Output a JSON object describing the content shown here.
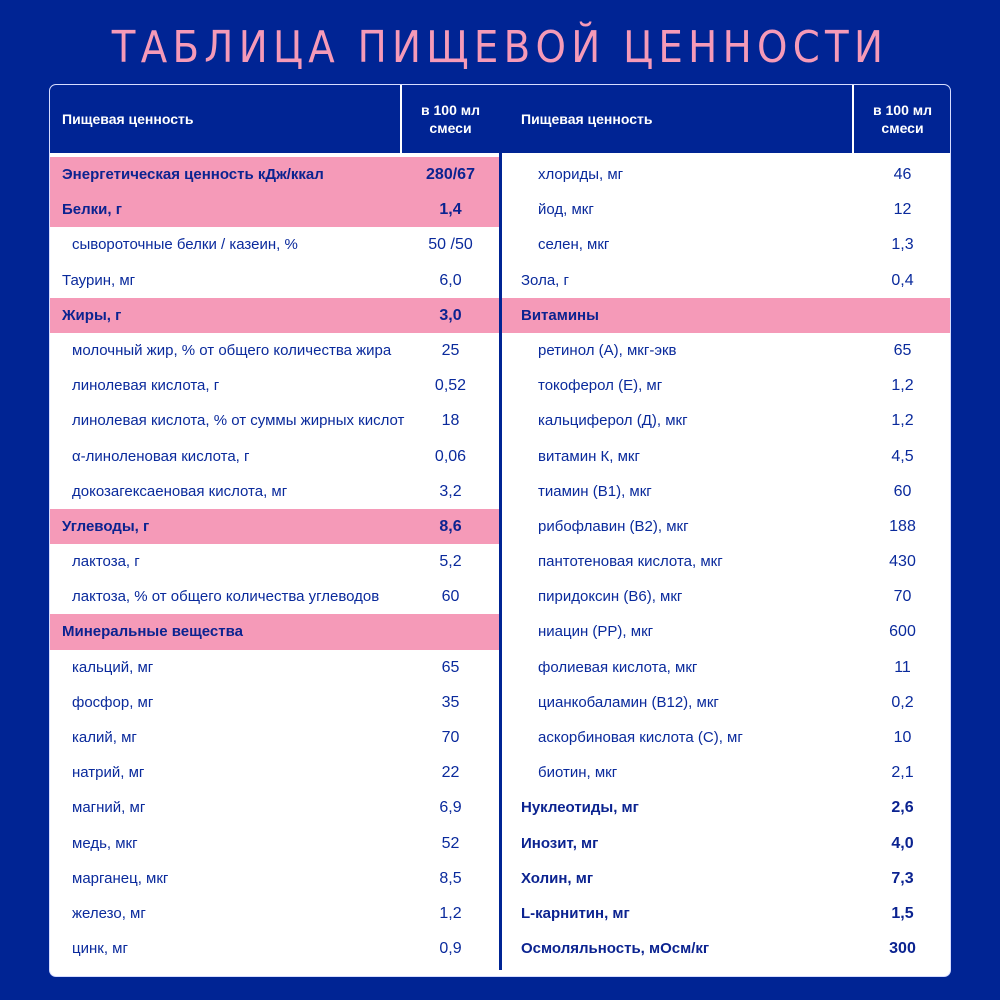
{
  "title": "ТАБЛИЦА ПИЩЕВОЙ ЦЕННОСТИ",
  "colors": {
    "background": "#002494",
    "accent_pink": "#f59ab8",
    "text_blue": "#0a2a9c",
    "card": "#ffffff"
  },
  "left": {
    "header": {
      "name": "Пищевая ценность",
      "unit_line1": "в 100 мл",
      "unit_line2": "смеси"
    },
    "rows": [
      {
        "label": "Энергетическая ценность кДж/ккал",
        "value": "280/67",
        "type": "section"
      },
      {
        "label": "Белки, г",
        "value": "1,4",
        "type": "section"
      },
      {
        "label": "сывороточные белки / казеин, %",
        "value": "50 /50",
        "type": "indent"
      },
      {
        "label": "Таурин, мг",
        "value": "6,0",
        "type": "plain"
      },
      {
        "label": "Жиры, г",
        "value": "3,0",
        "type": "section"
      },
      {
        "label": "молочный жир, % от общего количества жира",
        "value": "25",
        "type": "indent"
      },
      {
        "label": "линолевая кислота, г",
        "value": "0,52",
        "type": "indent"
      },
      {
        "label": "линолевая кислота, % от суммы жирных кислот",
        "value": "18",
        "type": "indent"
      },
      {
        "label": "α-линоленовая кислота, г",
        "value": "0,06",
        "type": "indent"
      },
      {
        "label": "докозагексаеновая кислота, мг",
        "value": "3,2",
        "type": "indent"
      },
      {
        "label": "Углеводы, г",
        "value": "8,6",
        "type": "section"
      },
      {
        "label": "лактоза, г",
        "value": "5,2",
        "type": "indent"
      },
      {
        "label": "лактоза, % от общего количества углеводов",
        "value": "60",
        "type": "indent"
      },
      {
        "label": "Минеральные вещества",
        "value": "",
        "type": "section"
      },
      {
        "label": "кальций, мг",
        "value": "65",
        "type": "indent"
      },
      {
        "label": "фосфор, мг",
        "value": "35",
        "type": "indent"
      },
      {
        "label": "калий, мг",
        "value": "70",
        "type": "indent"
      },
      {
        "label": "натрий, мг",
        "value": "22",
        "type": "indent"
      },
      {
        "label": "магний, мг",
        "value": "6,9",
        "type": "indent"
      },
      {
        "label": "медь, мкг",
        "value": "52",
        "type": "indent"
      },
      {
        "label": "марганец, мкг",
        "value": "8,5",
        "type": "indent"
      },
      {
        "label": "железо, мг",
        "value": "1,2",
        "type": "indent"
      },
      {
        "label": "цинк, мг",
        "value": "0,9",
        "type": "indent"
      }
    ]
  },
  "right": {
    "header": {
      "name": "Пищевая ценность",
      "unit_line1": "в 100 мл",
      "unit_line2": "смеси"
    },
    "rows": [
      {
        "label": "хлориды, мг",
        "value": "46",
        "type": "indent"
      },
      {
        "label": "йод, мкг",
        "value": "12",
        "type": "indent"
      },
      {
        "label": "селен, мкг",
        "value": "1,3",
        "type": "indent"
      },
      {
        "label": "Зола, г",
        "value": "0,4",
        "type": "plain"
      },
      {
        "label": "Витамины",
        "value": "",
        "type": "section"
      },
      {
        "label": "ретинол (А), мкг-экв",
        "value": "65",
        "type": "indent"
      },
      {
        "label": "токоферол (Е), мг",
        "value": "1,2",
        "type": "indent"
      },
      {
        "label": "кальциферол (Д), мкг",
        "value": "1,2",
        "type": "indent"
      },
      {
        "label": "витамин К, мкг",
        "value": "4,5",
        "type": "indent"
      },
      {
        "label": "тиамин (В1), мкг",
        "value": "60",
        "type": "indent"
      },
      {
        "label": "рибофлавин (В2), мкг",
        "value": "188",
        "type": "indent"
      },
      {
        "label": "пантотеновая кислота, мкг",
        "value": "430",
        "type": "indent"
      },
      {
        "label": "пиридоксин (В6), мкг",
        "value": "70",
        "type": "indent"
      },
      {
        "label": "ниацин (РР), мкг",
        "value": "600",
        "type": "indent"
      },
      {
        "label": "фолиевая кислота, мкг",
        "value": "11",
        "type": "indent"
      },
      {
        "label": "цианкобаламин (В12), мкг",
        "value": "0,2",
        "type": "indent"
      },
      {
        "label": "аскорбиновая кислота (С), мг",
        "value": "10",
        "type": "indent"
      },
      {
        "label": "биотин, мкг",
        "value": "2,1",
        "type": "indent"
      },
      {
        "label": "Нуклеотиды, мг",
        "value": "2,6",
        "type": "bold"
      },
      {
        "label": "Инозит, мг",
        "value": "4,0",
        "type": "bold"
      },
      {
        "label": "Холин, мг",
        "value": "7,3",
        "type": "bold"
      },
      {
        "label": "L-карнитин, мг",
        "value": "1,5",
        "type": "bold"
      },
      {
        "label": "Осмоляльность, мОсм/кг",
        "value": "300",
        "type": "bold"
      }
    ]
  }
}
